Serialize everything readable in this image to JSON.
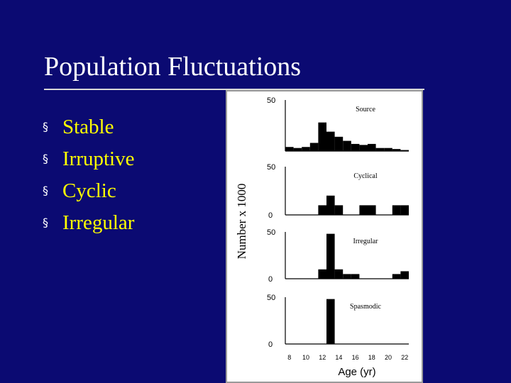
{
  "slide": {
    "title": "Population Fluctuations",
    "bullet_glyph": "§",
    "bullets": [
      "Stable",
      "Irruptive",
      "Cyclic",
      "Irregular"
    ],
    "colors": {
      "background": "#0b0a72",
      "title": "#ffffff",
      "bullet_text": "#ffff00"
    }
  },
  "chart_data": {
    "type": "bar",
    "xlabel": "Age (yr)",
    "ylabel": "Number x 1000",
    "x_ticks": [
      "8",
      "10",
      "12",
      "14",
      "16",
      "18",
      "20",
      "22"
    ],
    "bin_width_yr": 1,
    "panels": [
      {
        "name": "Source",
        "y_ticks": [
          "50",
          ""
        ],
        "ylim": [
          0,
          50
        ],
        "x": [
          8,
          9,
          10,
          11,
          12,
          13,
          14,
          15,
          16,
          17,
          18,
          19,
          20,
          21,
          22
        ],
        "values": [
          4,
          3,
          4,
          8,
          28,
          19,
          14,
          10,
          7,
          6,
          7,
          3,
          3,
          2,
          1
        ]
      },
      {
        "name": "Cyclical",
        "y_ticks": [
          "50",
          "0"
        ],
        "ylim": [
          0,
          50
        ],
        "x": [
          8,
          9,
          10,
          11,
          12,
          13,
          14,
          15,
          16,
          17,
          18,
          19,
          20,
          21,
          22
        ],
        "values": [
          0,
          0,
          0,
          0,
          10,
          20,
          10,
          0,
          0,
          10,
          10,
          0,
          0,
          10,
          10
        ]
      },
      {
        "name": "Irregular",
        "y_ticks": [
          "50",
          "0"
        ],
        "ylim": [
          0,
          50
        ],
        "x": [
          8,
          9,
          10,
          11,
          12,
          13,
          14,
          15,
          16,
          17,
          18,
          19,
          20,
          21,
          22
        ],
        "values": [
          0,
          0,
          0,
          0,
          10,
          48,
          10,
          5,
          5,
          0,
          0,
          0,
          0,
          5,
          8
        ]
      },
      {
        "name": "Spasmodic",
        "y_ticks": [
          "50",
          "0"
        ],
        "ylim": [
          0,
          50
        ],
        "x": [
          8,
          9,
          10,
          11,
          12,
          13,
          14,
          15,
          16,
          17,
          18,
          19,
          20,
          21,
          22
        ],
        "values": [
          0,
          0,
          0,
          0,
          0,
          48,
          0,
          0,
          0,
          0,
          0,
          0,
          0,
          0,
          0
        ]
      }
    ],
    "grid": false,
    "legend": "none"
  }
}
